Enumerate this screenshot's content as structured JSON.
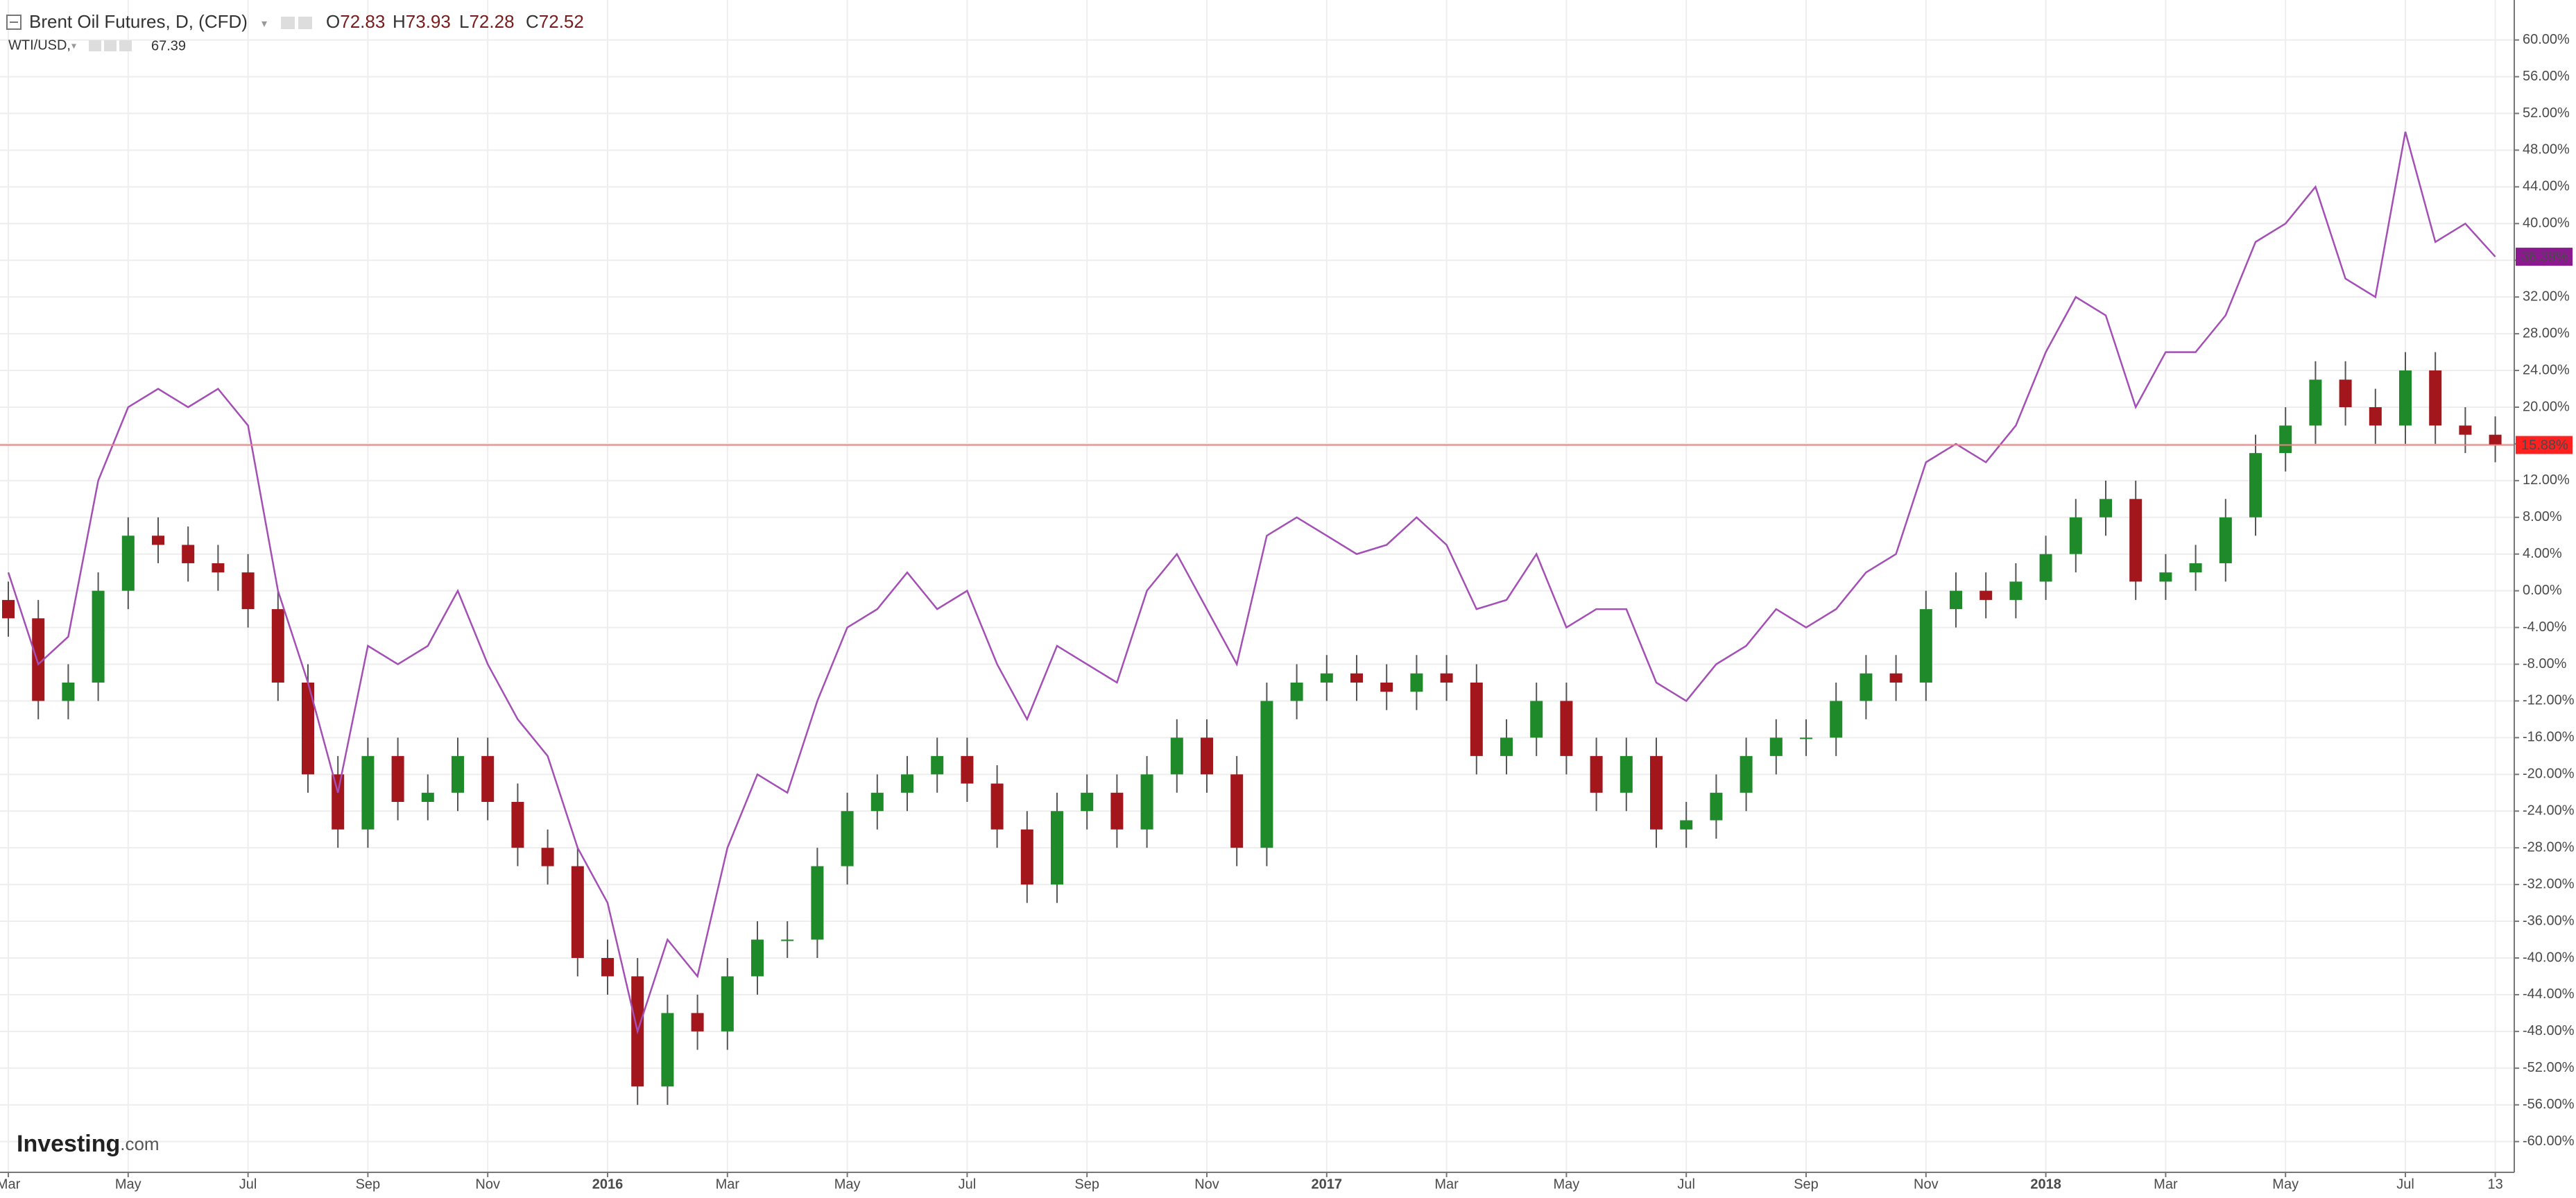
{
  "chart_data": {
    "type": "candlestick",
    "title": "Brent Oil Futures, D, (CFD)",
    "ohlc": [
      {
        "label": "O",
        "value": 72.83
      },
      {
        "label": "H",
        "value": 73.93
      },
      {
        "label": "L",
        "value": 72.28
      },
      {
        "label": "C",
        "value": 72.52
      }
    ],
    "compare_title": "WTI/USD,",
    "compare_last": 67.39,
    "logo": {
      "brand": "Investing",
      "suffix": ".com"
    },
    "categories": [
      "Mar",
      null,
      null,
      null,
      "May",
      null,
      null,
      null,
      "Jul",
      null,
      null,
      null,
      "Sep",
      null,
      null,
      null,
      "Nov",
      null,
      null,
      null,
      "2016",
      null,
      null,
      null,
      "Mar",
      null,
      null,
      null,
      "May",
      null,
      null,
      null,
      "Jul",
      null,
      null,
      null,
      "Sep",
      null,
      null,
      null,
      "Nov",
      null,
      null,
      null,
      "2017",
      null,
      null,
      null,
      "Mar",
      null,
      null,
      null,
      "May",
      null,
      null,
      null,
      "Jul",
      null,
      null,
      null,
      "Sep",
      null,
      null,
      null,
      "Nov",
      null,
      null,
      null,
      "2018",
      null,
      null,
      null,
      "Mar",
      null,
      null,
      null,
      "May",
      null,
      null,
      null,
      "Jul",
      null,
      null,
      "13"
    ],
    "series": [
      {
        "name": "Brent Oil Futures",
        "type": "candlestick",
        "up_color": "#1e8a2a",
        "down_color": "#a3161c",
        "price_tag": "15.88%",
        "tag_color": "#ff2020",
        "open": [
          -1,
          -3,
          -12,
          -10,
          0,
          6,
          5,
          3,
          2,
          -2,
          -10,
          -20,
          -26,
          -18,
          -23,
          -22,
          -18,
          -23,
          -28,
          -30,
          -40,
          -42,
          -54,
          -46,
          -48,
          -42,
          -38,
          -38,
          -30,
          -24,
          -22,
          -20,
          -18,
          -21,
          -26,
          -32,
          -24,
          -22,
          -26,
          -20,
          -16,
          -20,
          -28,
          -12,
          -10,
          -9,
          -10,
          -11,
          -9,
          -10,
          -18,
          -16,
          -12,
          -18,
          -22,
          -18,
          -26,
          -25,
          -22,
          -18,
          -16,
          -16,
          -12,
          -9,
          -10,
          -2,
          0,
          -1,
          1,
          4,
          8,
          10,
          1,
          2,
          3,
          8,
          15,
          18,
          23,
          20,
          18,
          24,
          18,
          17
        ],
        "high": [
          1,
          -1,
          -8,
          2,
          8,
          8,
          7,
          5,
          4,
          0,
          -8,
          -18,
          -16,
          -16,
          -20,
          -16,
          -16,
          -21,
          -26,
          -28,
          -38,
          -40,
          -44,
          -44,
          -40,
          -36,
          -36,
          -28,
          -22,
          -20,
          -18,
          -16,
          -16,
          -19,
          -24,
          -22,
          -20,
          -20,
          -18,
          -14,
          -14,
          -18,
          -10,
          -8,
          -7,
          -7,
          -8,
          -7,
          -7,
          -8,
          -14,
          -10,
          -10,
          -16,
          -16,
          -16,
          -23,
          -20,
          -16,
          -14,
          -14,
          -10,
          -7,
          -7,
          0,
          2,
          2,
          3,
          6,
          10,
          12,
          12,
          4,
          5,
          10,
          17,
          20,
          25,
          25,
          22,
          26,
          26,
          20,
          19
        ],
        "low": [
          -5,
          -14,
          -14,
          -12,
          -2,
          3,
          1,
          0,
          -4,
          -12,
          -22,
          -28,
          -28,
          -25,
          -25,
          -24,
          -25,
          -30,
          -32,
          -42,
          -44,
          -56,
          -56,
          -50,
          -50,
          -44,
          -40,
          -40,
          -32,
          -26,
          -24,
          -22,
          -23,
          -28,
          -34,
          -34,
          -26,
          -28,
          -28,
          -22,
          -22,
          -30,
          -30,
          -14,
          -12,
          -12,
          -13,
          -13,
          -12,
          -20,
          -20,
          -18,
          -20,
          -24,
          -24,
          -28,
          -28,
          -27,
          -24,
          -20,
          -18,
          -18,
          -14,
          -12,
          -12,
          -4,
          -3,
          -3,
          -1,
          2,
          6,
          -1,
          -1,
          0,
          1,
          6,
          13,
          16,
          18,
          16,
          16,
          16,
          15,
          14
        ],
        "close": [
          -3,
          -12,
          -10,
          0,
          6,
          5,
          3,
          2,
          -2,
          -10,
          -20,
          -26,
          -18,
          -23,
          -22,
          -18,
          -23,
          -28,
          -30,
          -40,
          -42,
          -54,
          -46,
          -48,
          -42,
          -38,
          -38,
          -30,
          -24,
          -22,
          -20,
          -18,
          -21,
          -26,
          -32,
          -24,
          -22,
          -26,
          -20,
          -16,
          -20,
          -28,
          -12,
          -10,
          -9,
          -10,
          -11,
          -9,
          -10,
          -18,
          -16,
          -12,
          -18,
          -22,
          -18,
          -26,
          -25,
          -22,
          -18,
          -16,
          -16,
          -12,
          -9,
          -10,
          -2,
          0,
          -1,
          1,
          4,
          8,
          10,
          1,
          2,
          3,
          8,
          15,
          18,
          23,
          20,
          18,
          24,
          18,
          17,
          15.88
        ]
      },
      {
        "name": "WTI/USD",
        "type": "line",
        "color": "#a34fb5",
        "price_tag": "36.39%",
        "tag_color": "#8b1a8f",
        "values": [
          2,
          -8,
          -5,
          12,
          20,
          22,
          20,
          22,
          18,
          0,
          -10,
          -22,
          -6,
          -8,
          -6,
          0,
          -8,
          -14,
          -18,
          -28,
          -34,
          -48,
          -38,
          -42,
          -28,
          -20,
          -22,
          -12,
          -4,
          -2,
          2,
          -2,
          0,
          -8,
          -14,
          -6,
          -8,
          -10,
          0,
          4,
          -2,
          -8,
          6,
          8,
          6,
          4,
          5,
          8,
          5,
          -2,
          -1,
          4,
          -4,
          -2,
          -2,
          -10,
          -12,
          -8,
          -6,
          -2,
          -4,
          -2,
          2,
          4,
          14,
          16,
          14,
          18,
          26,
          32,
          30,
          20,
          26,
          26,
          30,
          38,
          40,
          44,
          34,
          32,
          50,
          38,
          40,
          36.39
        ]
      }
    ],
    "ylim": [
      -63.2,
      63.6
    ],
    "yticks": [
      {
        "value": 60,
        "label": "60.00%"
      },
      {
        "value": 56,
        "label": "56.00%"
      },
      {
        "value": 52,
        "label": "52.00%"
      },
      {
        "value": 48,
        "label": "48.00%"
      },
      {
        "value": 44,
        "label": "44.00%"
      },
      {
        "value": 40,
        "label": "40.00%"
      },
      {
        "value": 36,
        "label": "36.00%"
      },
      {
        "value": 32,
        "label": "32.00%"
      },
      {
        "value": 28,
        "label": "28.00%"
      },
      {
        "value": 24,
        "label": "24.00%"
      },
      {
        "value": 20,
        "label": "20.00%"
      },
      {
        "value": 16,
        "label": "16.00%"
      },
      {
        "value": 12,
        "label": "12.00%"
      },
      {
        "value": 8,
        "label": "8.00%"
      },
      {
        "value": 4,
        "label": "4.00%"
      },
      {
        "value": 0,
        "label": "0.00%"
      },
      {
        "value": -4,
        "label": "-4.00%"
      },
      {
        "value": -8,
        "label": "-8.00%"
      },
      {
        "value": -12,
        "label": "-12.00%"
      },
      {
        "value": -16,
        "label": "-16.00%"
      },
      {
        "value": -20,
        "label": "-20.00%"
      },
      {
        "value": -24,
        "label": "-24.00%"
      },
      {
        "value": -28,
        "label": "-28.00%"
      },
      {
        "value": -32,
        "label": "-32.00%"
      },
      {
        "value": -36,
        "label": "-36.00%"
      },
      {
        "value": -40,
        "label": "-40.00%"
      },
      {
        "value": -44,
        "label": "-44.00%"
      },
      {
        "value": -48,
        "label": "-48.00%"
      },
      {
        "value": -52,
        "label": "-52.00%"
      },
      {
        "value": -56,
        "label": "-56.00%"
      },
      {
        "value": -60,
        "label": "-60.00%"
      }
    ],
    "grid": true,
    "value_color": "#7a1c1c",
    "compare_color": "#8b1a8f"
  }
}
